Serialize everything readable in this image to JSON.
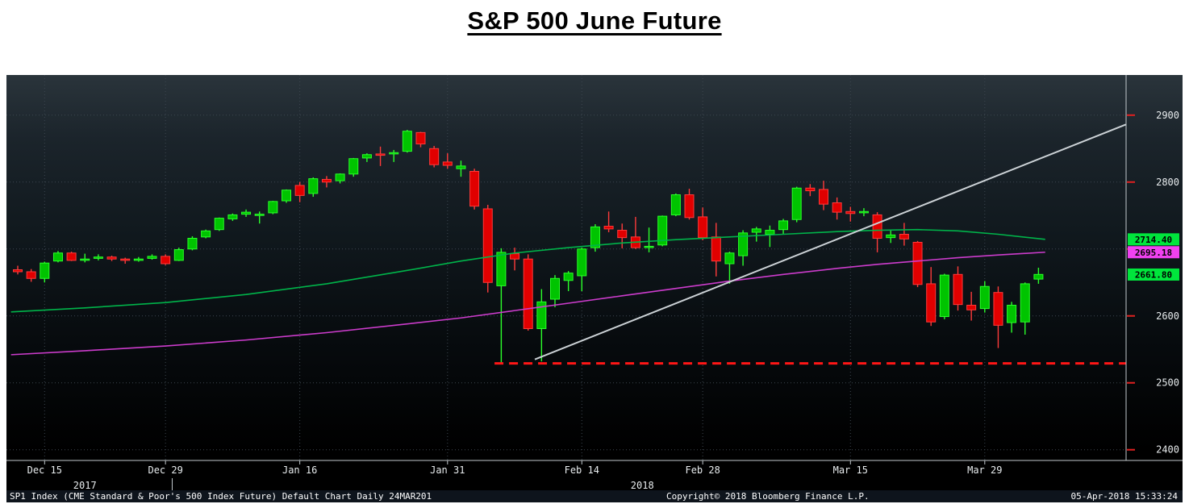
{
  "page_title": "S&P 500 June Future",
  "footer": {
    "left": "SP1 Index (CME Standard & Poor's 500 Index Future) Default Chart  Daily 24MAR201",
    "center": "Copyright© 2018 Bloomberg Finance L.P.",
    "right": "05-Apr-2018 15:33:24"
  },
  "chart_data": {
    "type": "candlestick",
    "title": "S&P 500 June Future",
    "y_axis": {
      "side": "right",
      "tick_labels": [
        2900,
        2800,
        2600,
        2500,
        2400
      ],
      "gridline_values": [
        2900,
        2800,
        2700,
        2600,
        2500,
        2400
      ],
      "top_value": 2960,
      "bottom_value": 2384
    },
    "x_axis": {
      "ticks": [
        {
          "i": 2,
          "label": "Dec 15"
        },
        {
          "i": 11,
          "label": "Dec 29"
        },
        {
          "i": 21,
          "label": "Jan 16"
        },
        {
          "i": 32,
          "label": "Jan 31"
        },
        {
          "i": 42,
          "label": "Feb 14"
        },
        {
          "i": 51,
          "label": "Feb 28"
        },
        {
          "i": 62,
          "label": "Mar 15"
        },
        {
          "i": 72,
          "label": "Mar 29"
        }
      ],
      "years": [
        {
          "i": 5,
          "label": "2017"
        },
        {
          "i": 46.5,
          "label": "2018"
        }
      ],
      "year_divider_i": 11.5
    },
    "candles": [
      [
        "Dec 13",
        2669,
        2675,
        2662,
        2666
      ],
      [
        "Dec 14",
        2666,
        2670,
        2651,
        2656
      ],
      [
        "Dec 15",
        2656,
        2681,
        2650,
        2679
      ],
      [
        "Dec 18",
        2682,
        2697,
        2680,
        2694
      ],
      [
        "Dec 19",
        2694,
        2696,
        2682,
        2683
      ],
      [
        "Dec 20",
        2684,
        2693,
        2680,
        2685
      ],
      [
        "Dec 21",
        2686,
        2692,
        2683,
        2688
      ],
      [
        "Dec 22",
        2688,
        2690,
        2682,
        2685
      ],
      [
        "Dec 26",
        2685,
        2687,
        2678,
        2683
      ],
      [
        "Dec 27",
        2683,
        2688,
        2681,
        2685
      ],
      [
        "Dec 28",
        2686,
        2692,
        2684,
        2689
      ],
      [
        "Dec 29",
        2689,
        2692,
        2676,
        2678
      ],
      [
        "Jan 2",
        2683,
        2702,
        2682,
        2699
      ],
      [
        "Jan 3",
        2700,
        2719,
        2698,
        2716
      ],
      [
        "Jan 4",
        2718,
        2729,
        2716,
        2727
      ],
      [
        "Jan 5",
        2729,
        2747,
        2727,
        2746
      ],
      [
        "Jan 8",
        2745,
        2753,
        2742,
        2751
      ],
      [
        "Jan 9",
        2752,
        2759,
        2748,
        2755
      ],
      [
        "Jan 10",
        2752,
        2756,
        2738,
        2752
      ],
      [
        "Jan 11",
        2754,
        2772,
        2752,
        2771
      ],
      [
        "Jan 12",
        2772,
        2789,
        2769,
        2788
      ],
      [
        "Jan 16",
        2795,
        2800,
        2770,
        2780
      ],
      [
        "Jan 17",
        2783,
        2807,
        2778,
        2805
      ],
      [
        "Jan 18",
        2804,
        2809,
        2792,
        2800
      ],
      [
        "Jan 19",
        2802,
        2813,
        2798,
        2812
      ],
      [
        "Jan 22",
        2812,
        2836,
        2808,
        2835
      ],
      [
        "Jan 23",
        2836,
        2843,
        2830,
        2841
      ],
      [
        "Jan 24",
        2842,
        2853,
        2824,
        2840
      ],
      [
        "Jan 25",
        2843,
        2848,
        2830,
        2844
      ],
      [
        "Jan 26",
        2846,
        2878,
        2844,
        2876
      ],
      [
        "Jan 29",
        2874,
        2875,
        2852,
        2857
      ],
      [
        "Jan 30",
        2850,
        2854,
        2822,
        2826
      ],
      [
        "Jan 31",
        2830,
        2843,
        2820,
        2825
      ],
      [
        "Feb 1",
        2820,
        2832,
        2808,
        2824
      ],
      [
        "Feb 2",
        2816,
        2820,
        2759,
        2764
      ],
      [
        "Feb 5",
        2760,
        2766,
        2635,
        2650
      ],
      [
        "Feb 6",
        2645,
        2701,
        2529,
        2695
      ],
      [
        "Feb 7",
        2693,
        2702,
        2668,
        2685
      ],
      [
        "Feb 8",
        2685,
        2692,
        2578,
        2581
      ],
      [
        "Feb 9",
        2581,
        2640,
        2532,
        2621
      ],
      [
        "Feb 12",
        2625,
        2661,
        2613,
        2656
      ],
      [
        "Feb 13",
        2653,
        2667,
        2637,
        2664
      ],
      [
        "Feb 14",
        2660,
        2702,
        2637,
        2700
      ],
      [
        "Feb 15",
        2702,
        2737,
        2696,
        2733
      ],
      [
        "Feb 16",
        2734,
        2756,
        2725,
        2730
      ],
      [
        "Feb 20",
        2728,
        2738,
        2701,
        2717
      ],
      [
        "Feb 21",
        2718,
        2748,
        2700,
        2702
      ],
      [
        "Feb 22",
        2703,
        2732,
        2695,
        2704
      ],
      [
        "Feb 23",
        2706,
        2750,
        2704,
        2749
      ],
      [
        "Feb 26",
        2751,
        2783,
        2749,
        2781
      ],
      [
        "Feb 27",
        2781,
        2790,
        2744,
        2747
      ],
      [
        "Feb 28",
        2748,
        2762,
        2713,
        2717
      ],
      [
        "Mar 1",
        2718,
        2739,
        2659,
        2682
      ],
      [
        "Mar 2",
        2678,
        2696,
        2648,
        2694
      ],
      [
        "Mar 5",
        2690,
        2728,
        2675,
        2724
      ],
      [
        "Mar 6",
        2725,
        2733,
        2711,
        2730
      ],
      [
        "Mar 7",
        2722,
        2735,
        2703,
        2728
      ],
      [
        "Mar 8",
        2729,
        2745,
        2722,
        2742
      ],
      [
        "Mar 9",
        2744,
        2793,
        2740,
        2791
      ],
      [
        "Mar 12",
        2791,
        2797,
        2779,
        2787
      ],
      [
        "Mar 13",
        2789,
        2802,
        2758,
        2767
      ],
      [
        "Mar 14",
        2769,
        2777,
        2744,
        2755
      ],
      [
        "Mar 15",
        2756,
        2763,
        2741,
        2753
      ],
      [
        "Mar 16",
        2755,
        2761,
        2749,
        2756
      ],
      [
        "Mar 19",
        2751,
        2755,
        2695,
        2716
      ],
      [
        "Mar 20",
        2717,
        2728,
        2709,
        2721
      ],
      [
        "Mar 21",
        2722,
        2739,
        2705,
        2715
      ],
      [
        "Mar 22",
        2710,
        2712,
        2643,
        2647
      ],
      [
        "Mar 23",
        2648,
        2673,
        2585,
        2591
      ],
      [
        "Mar 26",
        2599,
        2663,
        2595,
        2661
      ],
      [
        "Mar 27",
        2662,
        2674,
        2608,
        2617
      ],
      [
        "Mar 28",
        2616,
        2636,
        2593,
        2609
      ],
      [
        "Mar 29",
        2611,
        2652,
        2605,
        2644
      ],
      [
        "Apr 2",
        2635,
        2644,
        2552,
        2586
      ],
      [
        "Apr 3",
        2590,
        2621,
        2575,
        2616
      ],
      [
        "Apr 4",
        2591,
        2650,
        2572,
        2648
      ],
      [
        "Apr 5",
        2655,
        2672,
        2648,
        2662
      ]
    ],
    "overlays": {
      "ma_fast": {
        "color": "#00b44a",
        "last_value": "2714.40",
        "points": [
          [
            -0.5,
            2606
          ],
          [
            5,
            2612
          ],
          [
            11,
            2620
          ],
          [
            17,
            2632
          ],
          [
            23,
            2648
          ],
          [
            29,
            2668
          ],
          [
            33,
            2682
          ],
          [
            37,
            2694
          ],
          [
            41,
            2702
          ],
          [
            45,
            2709
          ],
          [
            49,
            2714
          ],
          [
            53,
            2718
          ],
          [
            57,
            2722
          ],
          [
            61,
            2726
          ],
          [
            64,
            2728
          ],
          [
            67,
            2729
          ],
          [
            70,
            2727
          ],
          [
            73,
            2722
          ],
          [
            76.5,
            2714.4
          ]
        ]
      },
      "ma_slow": {
        "color": "#cc3ccc",
        "last_value": "2695.18",
        "points": [
          [
            -0.5,
            2542
          ],
          [
            5,
            2548
          ],
          [
            11,
            2555
          ],
          [
            17,
            2564
          ],
          [
            23,
            2575
          ],
          [
            29,
            2588
          ],
          [
            33,
            2597
          ],
          [
            37,
            2608
          ],
          [
            41,
            2619
          ],
          [
            45,
            2630
          ],
          [
            49,
            2641
          ],
          [
            53,
            2652
          ],
          [
            57,
            2662
          ],
          [
            61,
            2671
          ],
          [
            64,
            2677
          ],
          [
            67,
            2682
          ],
          [
            70,
            2687
          ],
          [
            73,
            2691
          ],
          [
            76.5,
            2695.2
          ]
        ]
      },
      "trendline": {
        "color": "#ccd2d6",
        "from": [
          38.5,
          2535
        ],
        "to": [
          82.5,
          2886
        ]
      },
      "support": {
        "color": "#ff1616",
        "value": 2529,
        "from_i": 35.5,
        "to_i": 82.5
      }
    },
    "price_badges": [
      {
        "label": "2714.40",
        "v": 2714.4,
        "bg": "#00e53c"
      },
      {
        "label": "2695.18",
        "v": 2695.18,
        "bg": "#f041f0"
      },
      {
        "label": "2661.80",
        "v": 2661.8,
        "bg": "#00e53c"
      }
    ],
    "colors": {
      "up": "#00c400",
      "up_bright": "#2bff2b",
      "down": "#e10000",
      "down_bright": "#ff3b3b",
      "grid": "#3d4750",
      "axis": "#c2c9cd",
      "label": "#e8ecee",
      "tick": "#e02020"
    }
  }
}
